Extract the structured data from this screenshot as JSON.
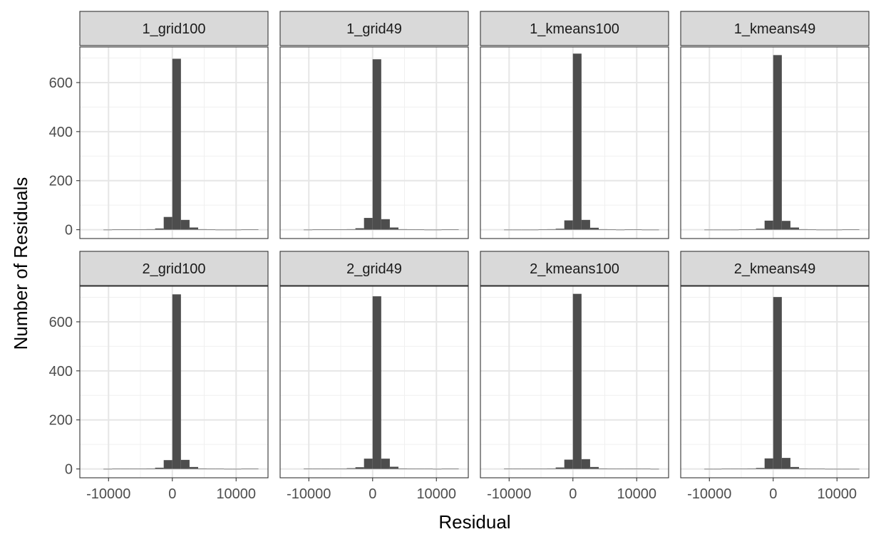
{
  "chart_data": {
    "type": "bar",
    "subtype": "faceted-histogram",
    "xlabel": "Residual",
    "ylabel": "Number of Residuals",
    "xlim": [
      -14500,
      15000
    ],
    "ylim": [
      -36,
      745
    ],
    "x_ticks": [
      -10000,
      0,
      10000
    ],
    "x_tick_labels": [
      "-10000",
      "0",
      "10000"
    ],
    "y_ticks": [
      0,
      200,
      400,
      600
    ],
    "y_tick_labels": [
      "0",
      "200",
      "400",
      "600"
    ],
    "grid": true,
    "legend": "none",
    "bar_color": "#4d4d4d",
    "strip_color": "#d9d9d9",
    "facet_layout": {
      "rows": 2,
      "cols": 4
    },
    "bin_width": 1350,
    "bins": [
      {
        "x": -10125
      },
      {
        "x": -8775
      },
      {
        "x": -7425
      },
      {
        "x": -6075
      },
      {
        "x": -4725
      },
      {
        "x": -3375
      },
      {
        "x": -2025
      },
      {
        "x": -675
      },
      {
        "x": 675
      },
      {
        "x": 2025
      },
      {
        "x": 3375
      },
      {
        "x": 4725
      },
      {
        "x": 6075
      },
      {
        "x": 7425
      },
      {
        "x": 8775
      },
      {
        "x": 10125
      },
      {
        "x": 11475
      },
      {
        "x": 12825
      }
    ],
    "facets": [
      {
        "name": "1_grid100",
        "counts": [
          0,
          1,
          1,
          1,
          1,
          2,
          5,
          52,
          697,
          40,
          9,
          2,
          1,
          0,
          0,
          0,
          1,
          1
        ]
      },
      {
        "name": "1_grid49",
        "counts": [
          0,
          1,
          1,
          1,
          1,
          2,
          6,
          48,
          695,
          43,
          9,
          2,
          1,
          1,
          0,
          0,
          1,
          1
        ]
      },
      {
        "name": "1_kmeans100",
        "counts": [
          0,
          0,
          0,
          0,
          1,
          2,
          4,
          38,
          718,
          40,
          8,
          2,
          1,
          0,
          1,
          1,
          0,
          0
        ]
      },
      {
        "name": "1_kmeans49",
        "counts": [
          0,
          0,
          0,
          0,
          1,
          1,
          4,
          37,
          712,
          36,
          9,
          2,
          1,
          0,
          0,
          0,
          1,
          1
        ]
      },
      {
        "name": "2_grid100",
        "counts": [
          0,
          1,
          1,
          1,
          1,
          2,
          5,
          36,
          712,
          37,
          8,
          2,
          1,
          1,
          0,
          0,
          1,
          1
        ]
      },
      {
        "name": "2_grid49",
        "counts": [
          1,
          1,
          1,
          1,
          1,
          3,
          7,
          42,
          704,
          42,
          9,
          2,
          1,
          1,
          1,
          0,
          1,
          1
        ]
      },
      {
        "name": "2_kmeans100",
        "counts": [
          1,
          1,
          1,
          1,
          1,
          2,
          6,
          38,
          714,
          40,
          8,
          2,
          1,
          1,
          1,
          1,
          1,
          0
        ]
      },
      {
        "name": "2_kmeans49",
        "counts": [
          0,
          0,
          1,
          1,
          1,
          2,
          4,
          43,
          701,
          45,
          8,
          2,
          1,
          1,
          0,
          0,
          0,
          0
        ]
      }
    ]
  }
}
